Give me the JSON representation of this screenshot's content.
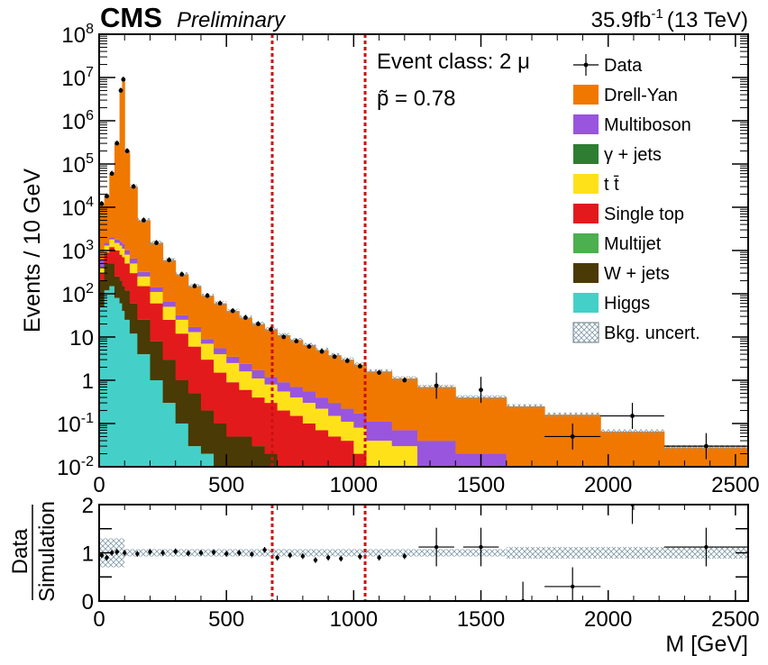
{
  "header": {
    "experiment": "CMS",
    "status": "Preliminary",
    "lumi": "35.9",
    "lumi_unit": "fb",
    "lumi_exp": "-1",
    "energy": "(13 TeV)"
  },
  "annotations": {
    "event_class": "Event class: 2 μ",
    "p_tilde": "p̃ = 0.78"
  },
  "colors": {
    "drell_yan": "#f07800",
    "multiboson": "#9955dd",
    "gamma_jets": "#2e7d32",
    "ttbar": "#ffe11a",
    "single_top": "#e31a1c",
    "multijet": "#4caf50",
    "w_jets": "#4a3a05",
    "higgs": "#44d0c8",
    "region_line": "#cc1111"
  },
  "chart_data": [
    {
      "type": "histogram-stacked",
      "title": "",
      "xlabel": "M [GeV]",
      "ylabel": "Events / 10 GeV",
      "xlim": [
        0,
        2550
      ],
      "ylim": [
        0.01,
        100000000
      ],
      "yscale": "log",
      "x_ticks": [
        "0",
        "500",
        "1000",
        "1500",
        "2000",
        "2500"
      ],
      "y_ticks": [
        "10^-2",
        "10^-1",
        "1",
        "10",
        "10^2",
        "10^3",
        "10^4",
        "10^5",
        "10^6",
        "10^7",
        "10^8"
      ],
      "region_of_interest": [
        680,
        1045
      ],
      "legend": [
        "Data",
        "Drell-Yan",
        "Multiboson",
        "γ + jets",
        "t t̄",
        "Single top",
        "Multijet",
        "W + jets",
        "Higgs",
        "Bkg. uncert."
      ],
      "legend_position": "top-right",
      "bins": [
        {
          "lo": 0,
          "hi": 20,
          "higgs": 50,
          "wjets": 200,
          "single_top": 300,
          "ttbar": 400,
          "multiboson": 600,
          "dy": 12000
        },
        {
          "lo": 20,
          "hi": 40,
          "higgs": 120,
          "wjets": 500,
          "single_top": 900,
          "ttbar": 1300,
          "multiboson": 1500,
          "dy": 18000
        },
        {
          "lo": 40,
          "hi": 60,
          "higgs": 150,
          "wjets": 500,
          "single_top": 1200,
          "ttbar": 1800,
          "multiboson": 2000,
          "dy": 60000
        },
        {
          "lo": 60,
          "hi": 80,
          "higgs": 80,
          "wjets": 250,
          "single_top": 1000,
          "ttbar": 1500,
          "multiboson": 1800,
          "dy": 300000
        },
        {
          "lo": 80,
          "hi": 90,
          "higgs": 60,
          "wjets": 200,
          "single_top": 800,
          "ttbar": 1300,
          "multiboson": 1600,
          "dy": 5000000
        },
        {
          "lo": 90,
          "hi": 100,
          "higgs": 40,
          "wjets": 150,
          "single_top": 700,
          "ttbar": 1100,
          "multiboson": 1400,
          "dy": 9000000
        },
        {
          "lo": 100,
          "hi": 120,
          "higgs": 25,
          "wjets": 120,
          "single_top": 500,
          "ttbar": 800,
          "multiboson": 1000,
          "dy": 200000
        },
        {
          "lo": 120,
          "hi": 150,
          "higgs": 12,
          "wjets": 60,
          "single_top": 300,
          "ttbar": 500,
          "multiboson": 650,
          "dy": 30000
        },
        {
          "lo": 150,
          "hi": 200,
          "higgs": 4,
          "wjets": 25,
          "single_top": 150,
          "ttbar": 250,
          "multiboson": 320,
          "dy": 5000
        },
        {
          "lo": 200,
          "hi": 250,
          "higgs": 1,
          "wjets": 8,
          "single_top": 60,
          "ttbar": 110,
          "multiboson": 140,
          "dy": 1500
        },
        {
          "lo": 250,
          "hi": 300,
          "higgs": 0.3,
          "wjets": 3,
          "single_top": 25,
          "ttbar": 50,
          "multiboson": 65,
          "dy": 600
        },
        {
          "lo": 300,
          "hi": 350,
          "higgs": 0.1,
          "wjets": 1,
          "single_top": 12,
          "ttbar": 25,
          "multiboson": 32,
          "dy": 280
        },
        {
          "lo": 350,
          "hi": 400,
          "higgs": 0.03,
          "wjets": 0.5,
          "single_top": 6,
          "ttbar": 13,
          "multiboson": 17,
          "dy": 150
        },
        {
          "lo": 400,
          "hi": 450,
          "higgs": 0.02,
          "wjets": 0.2,
          "single_top": 3,
          "ttbar": 7,
          "multiboson": 9,
          "dy": 90
        },
        {
          "lo": 450,
          "hi": 500,
          "higgs": 0.01,
          "wjets": 0.1,
          "single_top": 1.5,
          "ttbar": 4,
          "multiboson": 5.5,
          "dy": 60
        },
        {
          "lo": 500,
          "hi": 550,
          "higgs": 0.01,
          "wjets": 0.05,
          "single_top": 0.9,
          "ttbar": 2.5,
          "multiboson": 3.5,
          "dy": 40
        },
        {
          "lo": 550,
          "hi": 600,
          "higgs": 0.01,
          "wjets": 0.05,
          "single_top": 0.6,
          "ttbar": 1.6,
          "multiboson": 2.4,
          "dy": 28
        },
        {
          "lo": 600,
          "hi": 650,
          "higgs": 0.01,
          "wjets": 0.03,
          "single_top": 0.4,
          "ttbar": 1.1,
          "multiboson": 1.7,
          "dy": 20
        },
        {
          "lo": 650,
          "hi": 700,
          "higgs": 0.01,
          "wjets": 0.02,
          "single_top": 0.3,
          "ttbar": 0.8,
          "multiboson": 1.2,
          "dy": 15
        },
        {
          "lo": 700,
          "hi": 750,
          "higgs": 0.01,
          "wjets": 0.01,
          "single_top": 0.2,
          "ttbar": 0.55,
          "multiboson": 0.9,
          "dy": 11
        },
        {
          "lo": 750,
          "hi": 800,
          "higgs": 0.01,
          "wjets": 0.01,
          "single_top": 0.15,
          "ttbar": 0.4,
          "multiboson": 0.7,
          "dy": 8.5
        },
        {
          "lo": 800,
          "hi": 850,
          "higgs": 0.01,
          "wjets": 0.01,
          "single_top": 0.1,
          "ttbar": 0.3,
          "multiboson": 0.55,
          "dy": 6.5
        },
        {
          "lo": 850,
          "hi": 900,
          "higgs": 0.01,
          "wjets": 0.01,
          "single_top": 0.07,
          "ttbar": 0.22,
          "multiboson": 0.4,
          "dy": 5
        },
        {
          "lo": 900,
          "hi": 950,
          "higgs": 0.01,
          "wjets": 0.01,
          "single_top": 0.05,
          "ttbar": 0.15,
          "multiboson": 0.3,
          "dy": 3.8
        },
        {
          "lo": 950,
          "hi": 1000,
          "higgs": 0.01,
          "wjets": 0.01,
          "single_top": 0.04,
          "ttbar": 0.11,
          "multiboson": 0.22,
          "dy": 3
        },
        {
          "lo": 1000,
          "hi": 1050,
          "higgs": 0.01,
          "wjets": 0.01,
          "single_top": 0.02,
          "ttbar": 0.08,
          "multiboson": 0.17,
          "dy": 2.3
        },
        {
          "lo": 1050,
          "hi": 1150,
          "higgs": 0.01,
          "wjets": 0.01,
          "single_top": 0.01,
          "ttbar": 0.04,
          "multiboson": 0.11,
          "dy": 1.6
        },
        {
          "lo": 1150,
          "hi": 1250,
          "higgs": 0.01,
          "wjets": 0.01,
          "single_top": 0.01,
          "ttbar": 0.03,
          "multiboson": 0.07,
          "dy": 1.1
        },
        {
          "lo": 1250,
          "hi": 1400,
          "higgs": 0.01,
          "wjets": 0.01,
          "single_top": 0.01,
          "ttbar": 0.01,
          "multiboson": 0.04,
          "dy": 0.7
        },
        {
          "lo": 1400,
          "hi": 1600,
          "higgs": 0.01,
          "wjets": 0.01,
          "single_top": 0.01,
          "ttbar": 0.01,
          "multiboson": 0.02,
          "dy": 0.4
        },
        {
          "lo": 1600,
          "hi": 1750,
          "higgs": 0.01,
          "wjets": 0.01,
          "single_top": 0.01,
          "ttbar": 0.01,
          "multiboson": 0.01,
          "dy": 0.25
        },
        {
          "lo": 1750,
          "hi": 1970,
          "higgs": 0.01,
          "wjets": 0.01,
          "single_top": 0.01,
          "ttbar": 0.01,
          "multiboson": 0.01,
          "dy": 0.16
        },
        {
          "lo": 1970,
          "hi": 2220,
          "higgs": 0.01,
          "wjets": 0.01,
          "single_top": 0.01,
          "ttbar": 0.01,
          "multiboson": 0.01,
          "dy": 0.065
        },
        {
          "lo": 2220,
          "hi": 2550,
          "higgs": 0.01,
          "wjets": 0.01,
          "single_top": 0.01,
          "ttbar": 0.01,
          "multiboson": 0.01,
          "dy": 0.028
        }
      ],
      "data_points": [
        {
          "x": 10,
          "y": 12000
        },
        {
          "x": 30,
          "y": 18000
        },
        {
          "x": 50,
          "y": 60000
        },
        {
          "x": 70,
          "y": 300000
        },
        {
          "x": 85,
          "y": 5000000
        },
        {
          "x": 95,
          "y": 9000000
        },
        {
          "x": 110,
          "y": 200000
        },
        {
          "x": 135,
          "y": 30000
        },
        {
          "x": 175,
          "y": 5000
        },
        {
          "x": 225,
          "y": 1500
        },
        {
          "x": 275,
          "y": 600
        },
        {
          "x": 325,
          "y": 280
        },
        {
          "x": 375,
          "y": 150
        },
        {
          "x": 425,
          "y": 90
        },
        {
          "x": 475,
          "y": 60
        },
        {
          "x": 525,
          "y": 40
        },
        {
          "x": 575,
          "y": 28
        },
        {
          "x": 625,
          "y": 20
        },
        {
          "x": 675,
          "y": 15
        },
        {
          "x": 725,
          "y": 10
        },
        {
          "x": 775,
          "y": 8
        },
        {
          "x": 825,
          "y": 6
        },
        {
          "x": 875,
          "y": 4.6
        },
        {
          "x": 925,
          "y": 3.5
        },
        {
          "x": 975,
          "y": 2.8
        },
        {
          "x": 1025,
          "y": 2.1
        },
        {
          "x": 1100,
          "y": 1.5
        },
        {
          "x": 1200,
          "y": 1.0
        },
        {
          "x": 1325,
          "y": 0.75
        },
        {
          "x": 1500,
          "y": 0.6
        },
        {
          "x": 1860,
          "y": 0.05,
          "xerr": 110
        },
        {
          "x": 2095,
          "y": 0.15,
          "xerr": 125
        },
        {
          "x": 2385,
          "y": 0.03,
          "xerr": 165
        }
      ]
    },
    {
      "type": "scatter",
      "title": "",
      "xlabel": "M [GeV]",
      "ylabel": "Data / Simulation",
      "xlim": [
        0,
        2550
      ],
      "ylim": [
        0,
        2
      ],
      "x_ticks": [
        "0",
        "500",
        "1000",
        "1500",
        "2000",
        "2500"
      ],
      "y_ticks": [
        "0",
        "0.5",
        "1",
        "1.5",
        "2"
      ],
      "ratio_points": [
        {
          "x": 10,
          "y": 0.95
        },
        {
          "x": 30,
          "y": 0.9
        },
        {
          "x": 50,
          "y": 1.0
        },
        {
          "x": 70,
          "y": 1.02
        },
        {
          "x": 100,
          "y": 1.0
        },
        {
          "x": 150,
          "y": 0.98
        },
        {
          "x": 200,
          "y": 1.02
        },
        {
          "x": 250,
          "y": 1.0
        },
        {
          "x": 300,
          "y": 1.03
        },
        {
          "x": 350,
          "y": 0.99
        },
        {
          "x": 400,
          "y": 1.0
        },
        {
          "x": 450,
          "y": 1.01
        },
        {
          "x": 500,
          "y": 0.98
        },
        {
          "x": 550,
          "y": 1.0
        },
        {
          "x": 600,
          "y": 0.97
        },
        {
          "x": 650,
          "y": 1.06
        },
        {
          "x": 700,
          "y": 0.9
        },
        {
          "x": 750,
          "y": 0.95
        },
        {
          "x": 800,
          "y": 0.93
        },
        {
          "x": 850,
          "y": 0.85
        },
        {
          "x": 900,
          "y": 0.9
        },
        {
          "x": 950,
          "y": 0.88
        },
        {
          "x": 1025,
          "y": 0.92
        },
        {
          "x": 1100,
          "y": 0.9
        },
        {
          "x": 1200,
          "y": 0.93
        },
        {
          "x": 1325,
          "y": 1.12
        },
        {
          "x": 1500,
          "y": 1.12
        },
        {
          "x": 1665,
          "y": 0.0
        },
        {
          "x": 1860,
          "y": 0.3
        },
        {
          "x": 2095,
          "y": 2.0
        },
        {
          "x": 2385,
          "y": 1.12
        }
      ],
      "uncertainty_band": 0.15
    }
  ]
}
